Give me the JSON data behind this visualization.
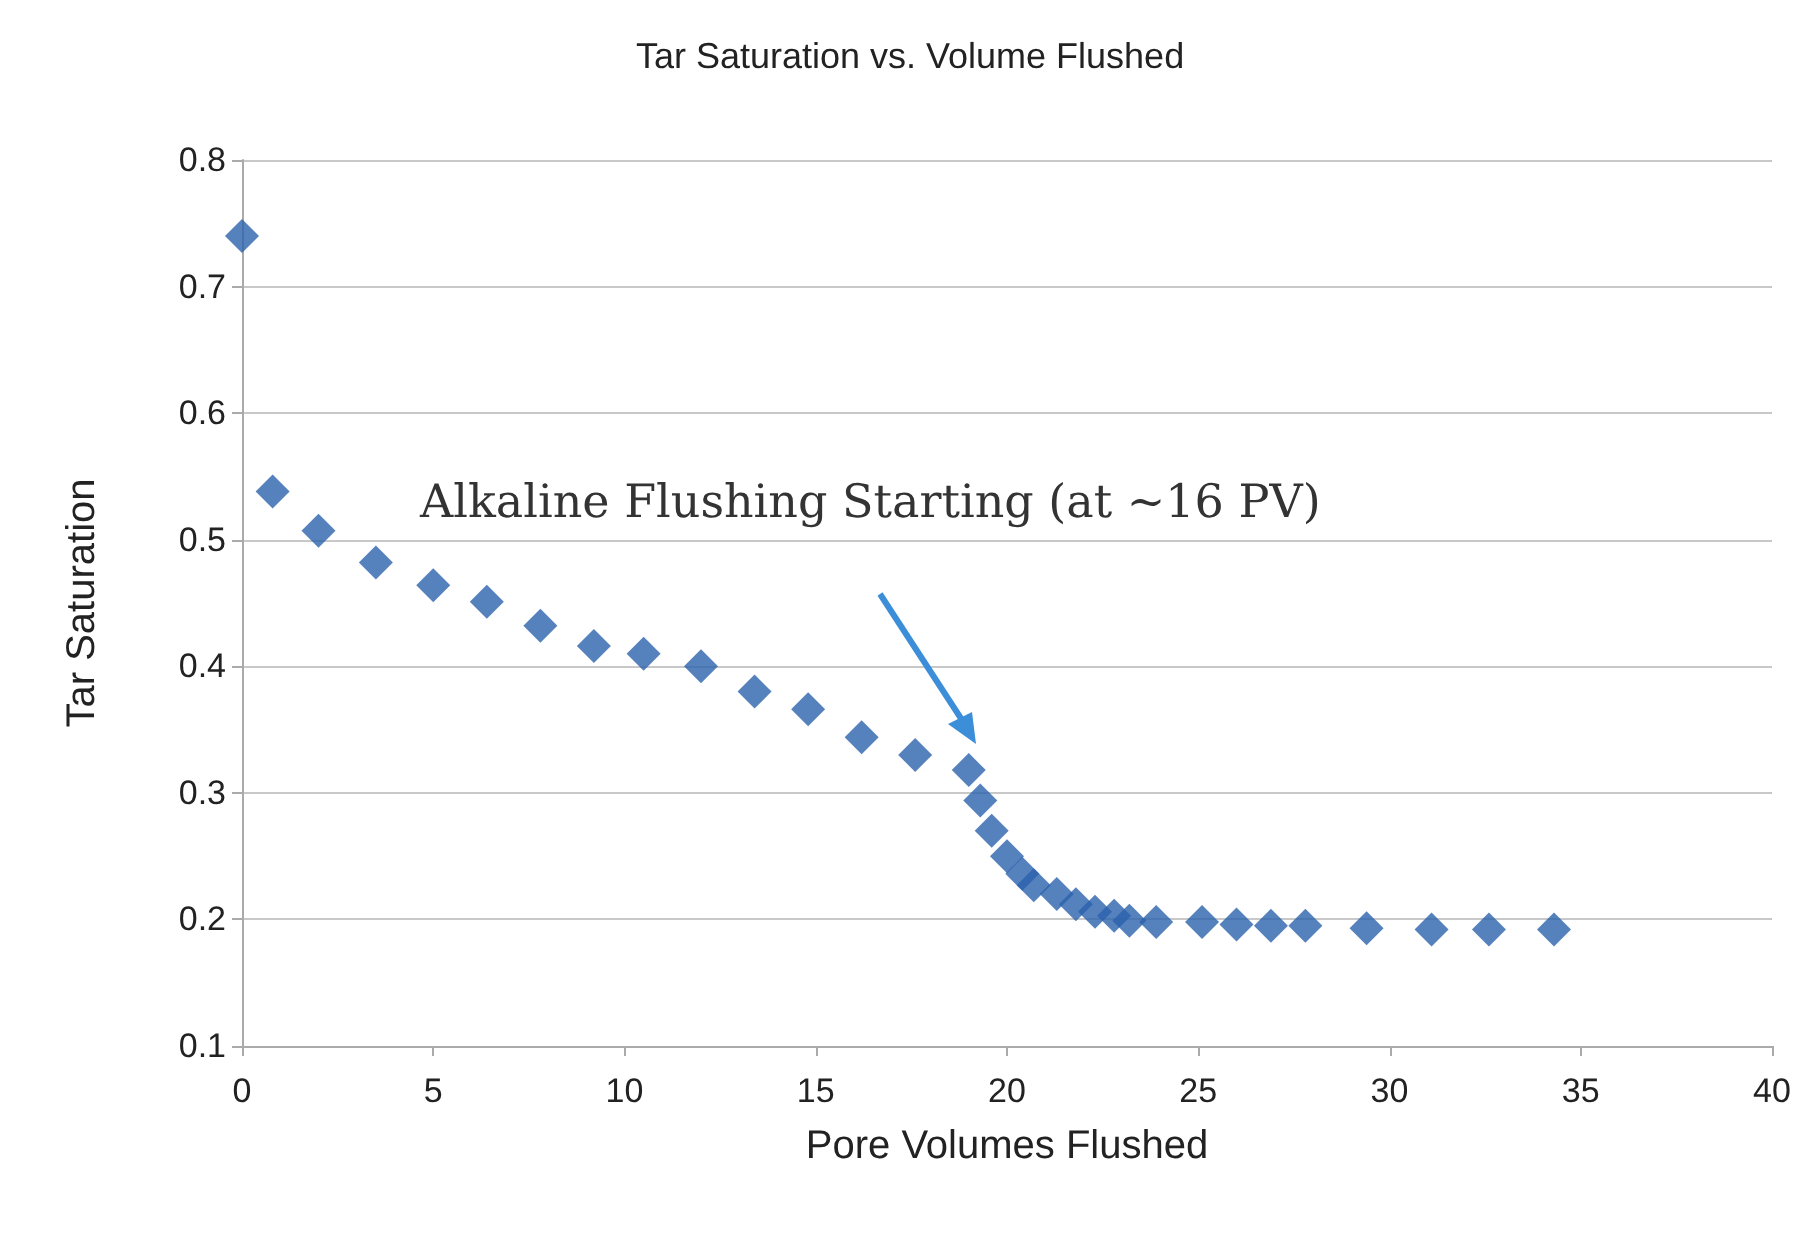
{
  "chart_data": {
    "type": "scatter",
    "title": "Tar Saturation vs. Volume Flushed",
    "xlabel": "Pore Volumes Flushed",
    "ylabel": "Tar Saturation",
    "x": [
      0,
      0.8,
      2.0,
      3.5,
      5.0,
      6.4,
      7.8,
      9.2,
      10.5,
      12.0,
      13.4,
      14.8,
      16.2,
      17.6,
      19.0,
      19.3,
      19.6,
      20.0,
      20.4,
      20.7,
      21.3,
      21.8,
      22.3,
      22.8,
      23.2,
      23.9,
      25.1,
      26.0,
      26.9,
      27.8,
      29.4,
      31.1,
      32.6,
      34.3
    ],
    "values": [
      0.74,
      0.538,
      0.507,
      0.482,
      0.464,
      0.451,
      0.432,
      0.416,
      0.41,
      0.4,
      0.38,
      0.366,
      0.344,
      0.33,
      0.318,
      0.294,
      0.27,
      0.25,
      0.236,
      0.227,
      0.22,
      0.212,
      0.206,
      0.203,
      0.199,
      0.198,
      0.198,
      0.196,
      0.195,
      0.195,
      0.193,
      0.192,
      0.192,
      0.192
    ],
    "color": "#2b62ad",
    "marker": "diamond",
    "xlim": [
      0,
      40
    ],
    "xticks": [
      0,
      5,
      10,
      15,
      20,
      25,
      30,
      35,
      40
    ],
    "ylim": [
      0.1,
      0.8
    ],
    "yticks": [
      0.1,
      0.2,
      0.3,
      0.4,
      0.5,
      0.6,
      0.7,
      0.8
    ],
    "grid": "y",
    "annotations": [
      "Alkaline Flushing Starting (at ~16 PV)"
    ]
  }
}
